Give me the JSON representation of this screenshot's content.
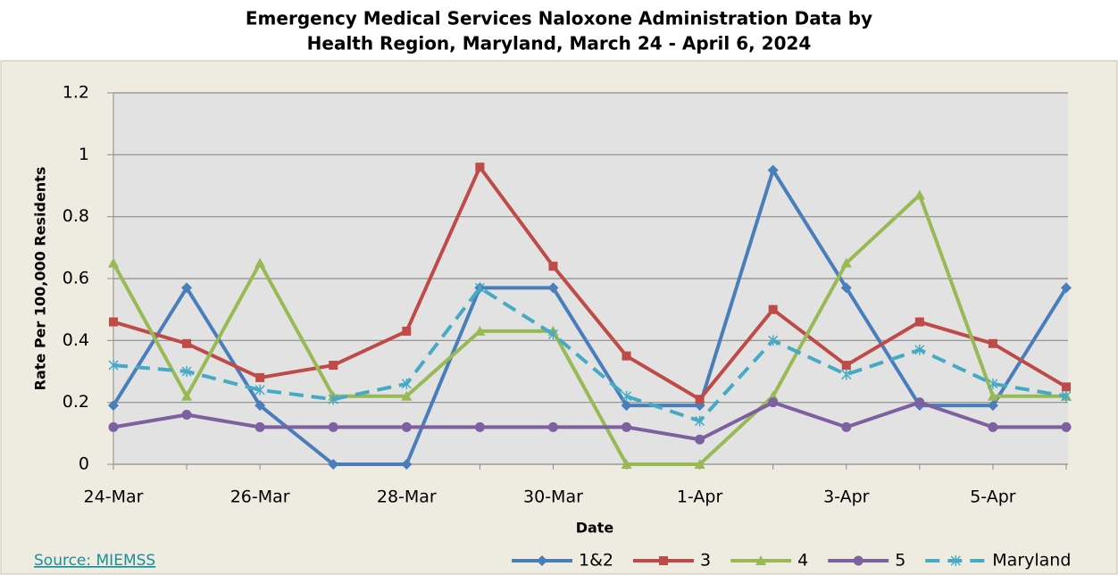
{
  "chart_data": {
    "type": "line",
    "title": "Emergency Medical Services Naloxone Administration Data by",
    "subtitle": "Health Region, Maryland, March 24 - April 6, 2024",
    "x_label": "Date",
    "y_label": "Rate Per 100,000 Residents",
    "source": "Source: MIEMSS",
    "categories": [
      "24-Mar",
      null,
      "26-Mar",
      null,
      "28-Mar",
      null,
      "30-Mar",
      null,
      "1-Apr",
      null,
      "3-Apr",
      null,
      "5-Apr",
      null
    ],
    "ylim": [
      0,
      1.2
    ],
    "yticks": [
      0,
      0.2,
      0.4,
      0.6,
      0.8,
      1,
      1.2
    ],
    "grid": true,
    "legend": "bottom-right",
    "series": [
      {
        "name": "1&2",
        "color": "#4a7ebb",
        "marker": "diamond",
        "dashed": false,
        "values": [
          0.19,
          0.57,
          0.19,
          0,
          0,
          0.57,
          0.57,
          0.19,
          0.19,
          0.95,
          0.57,
          0.19,
          0.19,
          0.57
        ]
      },
      {
        "name": "3",
        "color": "#be4b48",
        "marker": "square",
        "dashed": false,
        "values": [
          0.46,
          0.39,
          0.28,
          0.32,
          0.43,
          0.96,
          0.64,
          0.35,
          0.21,
          0.5,
          0.32,
          0.46,
          0.39,
          0.25
        ]
      },
      {
        "name": "4",
        "color": "#98b954",
        "marker": "triangle",
        "dashed": false,
        "values": [
          0.65,
          0.22,
          0.65,
          0.22,
          0.22,
          0.43,
          0.43,
          0,
          0,
          0.22,
          0.65,
          0.87,
          0.22,
          0.22
        ]
      },
      {
        "name": "5",
        "color": "#7d60a0",
        "marker": "circle",
        "dashed": false,
        "values": [
          0.12,
          0.16,
          0.12,
          0.12,
          0.12,
          0.12,
          0.12,
          0.12,
          0.08,
          0.2,
          0.12,
          0.2,
          0.12,
          0.12
        ]
      },
      {
        "name": "Maryland",
        "color": "#46aac5",
        "marker": "star",
        "dashed": true,
        "values": [
          0.32,
          0.3,
          0.24,
          0.21,
          0.26,
          0.57,
          0.42,
          0.22,
          0.14,
          0.4,
          0.29,
          0.37,
          0.26,
          0.22
        ]
      }
    ]
  }
}
